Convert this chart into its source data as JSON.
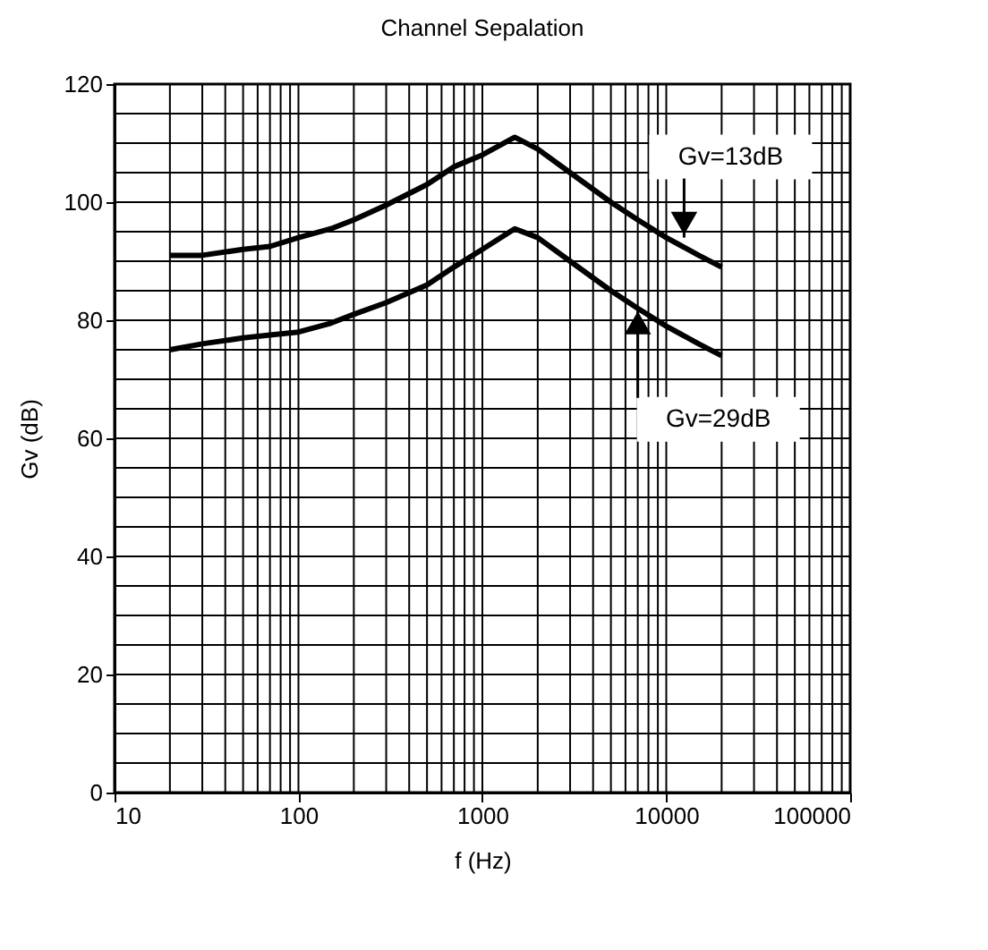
{
  "chart_data": {
    "type": "line",
    "title": "Channel Sepalation",
    "xlabel": "f (Hz)",
    "ylabel": "Gv (dB)",
    "log": "x",
    "x": [
      20,
      30,
      50,
      70,
      100,
      150,
      200,
      300,
      500,
      700,
      1000,
      1500,
      2000,
      3000,
      5000,
      7000,
      10000,
      15000,
      20000
    ],
    "series": [
      {
        "color": "#000000",
        "values": [
          91,
          91,
          92,
          92.5,
          94,
          95.5,
          97,
          99.5,
          103,
          106,
          108,
          111,
          109,
          105,
          100,
          97,
          94,
          91,
          89
        ]
      },
      {
        "color": "#000000",
        "values": [
          75,
          76,
          77,
          77.5,
          78,
          79.5,
          81,
          83,
          86,
          89,
          92,
          95.5,
          94,
          90,
          85,
          82,
          79,
          76,
          74
        ]
      }
    ],
    "xlim": [
      10,
      100000
    ],
    "xticks": [
      10,
      100,
      1000,
      10000,
      100000
    ],
    "ylim": [
      0,
      120
    ],
    "yticks": [
      0,
      20,
      40,
      60,
      80,
      100,
      120
    ],
    "grid": true,
    "legend": false,
    "marker": "none",
    "line_style": "solid",
    "annotations": [
      {
        "text": "Gv=13dB",
        "x": 12500,
        "y": 94
      },
      {
        "text": "Gv=29dB",
        "x": 7000,
        "y": 82
      }
    ]
  }
}
